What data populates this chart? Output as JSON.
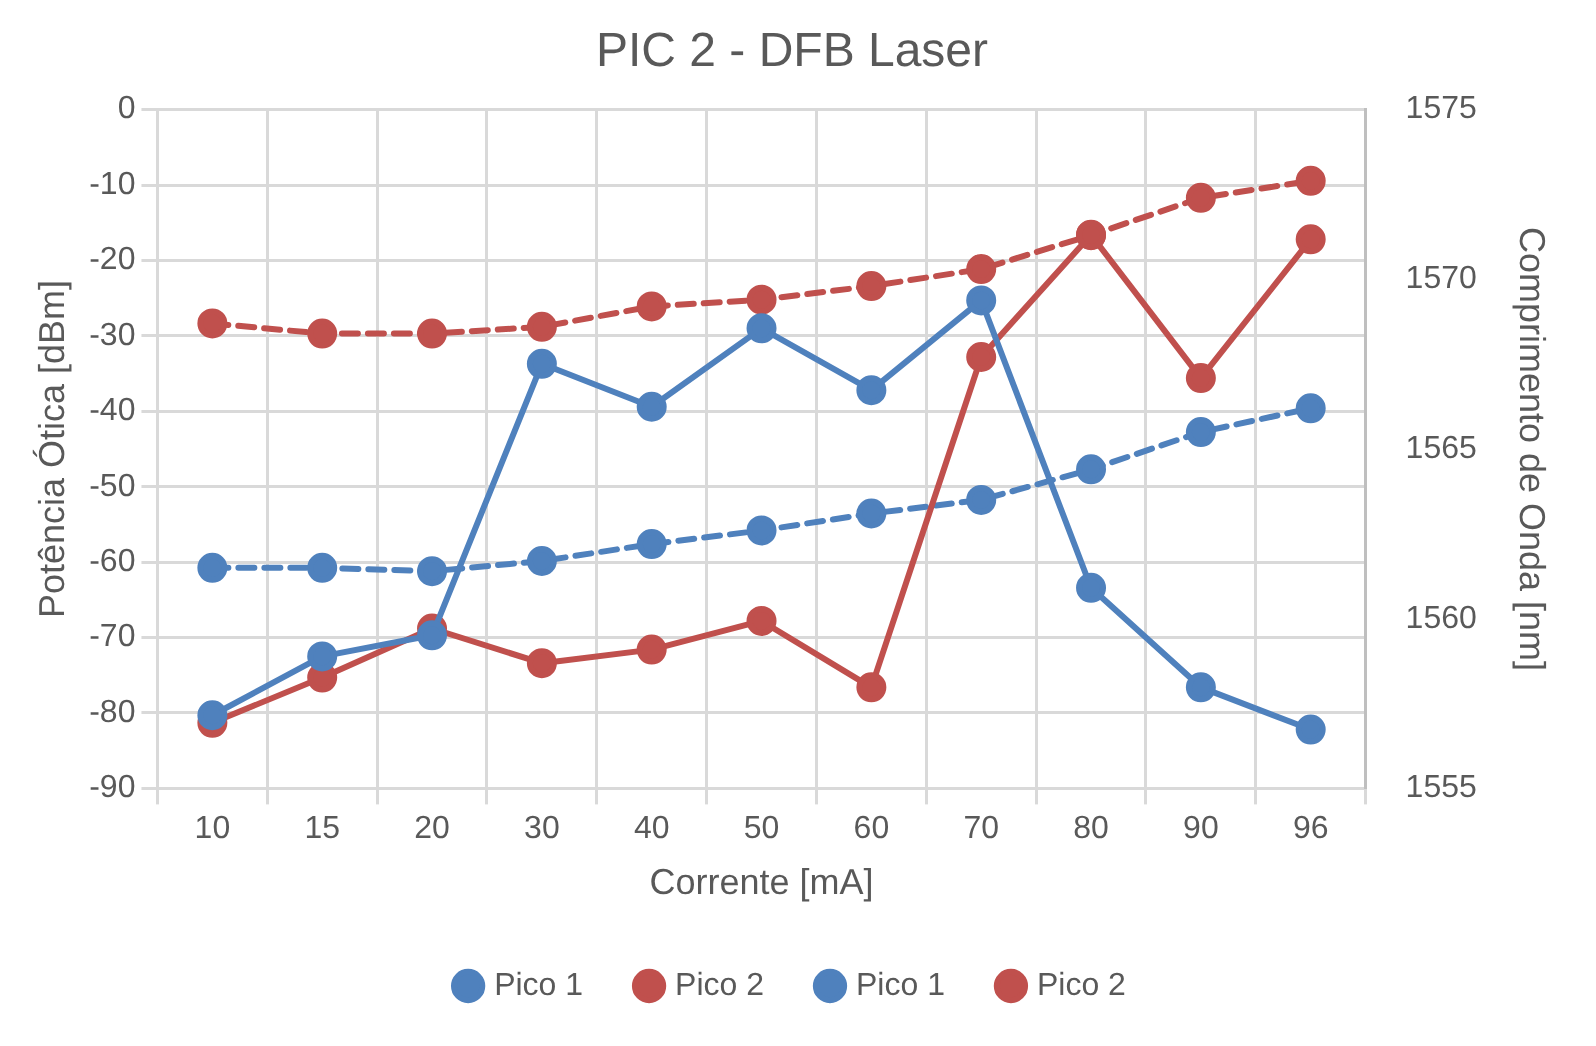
{
  "chart_data": {
    "type": "line",
    "title": "PIC 2 - DFB Laser",
    "xlabel": "Corrente [mA]",
    "ylabel": "Potência Ótica [dBm]",
    "y2label": "Comprimento de Onda [nm]",
    "categories": [
      "10",
      "15",
      "20",
      "30",
      "40",
      "50",
      "60",
      "70",
      "80",
      "90",
      "96"
    ],
    "series": [
      {
        "name": "Pico 1",
        "color": "#4f81bd",
        "line_style": "solid",
        "values": [
          -80.3,
          -72.5,
          -69.7,
          -33.7,
          -39.4,
          -29,
          -37.2,
          -25.3,
          -63.4,
          -76.6,
          -82.2
        ]
      },
      {
        "name": "Pico 2",
        "color": "#c0504d",
        "line_style": "solid",
        "values": [
          -81.3,
          -75.3,
          -68.8,
          -73.4,
          -71.6,
          -67.8,
          -76.6,
          -32.8,
          -16.6,
          -35.6,
          -17.2
        ]
      },
      {
        "name": "Pico 1",
        "color": "#4f81bd",
        "line_style": "dashed",
        "axis": "y2",
        "values": [
          1561.5,
          1561.5,
          1561.4,
          1561.7,
          1562.2,
          1562.6,
          1563.1,
          1563.5,
          1564.4,
          1565.5,
          1566.2
        ]
      },
      {
        "name": "Pico 2",
        "color": "#c0504d",
        "line_style": "dashed",
        "axis": "y2",
        "values": [
          1568.7,
          1568.4,
          1568.4,
          1568.6,
          1569.2,
          1569.4,
          1569.8,
          1570.3,
          1571.3,
          1572.4,
          1572.9
        ]
      }
    ],
    "ylim": [
      -90,
      0
    ],
    "yticks": [
      -90,
      -80,
      -70,
      -60,
      -50,
      -40,
      -30,
      -20,
      -10,
      0
    ],
    "y2lim": [
      1555,
      1575
    ],
    "y2ticks": [
      1555,
      1560,
      1565,
      1570,
      1575
    ],
    "grid": true,
    "legend": "bottom",
    "marker": "circle"
  }
}
